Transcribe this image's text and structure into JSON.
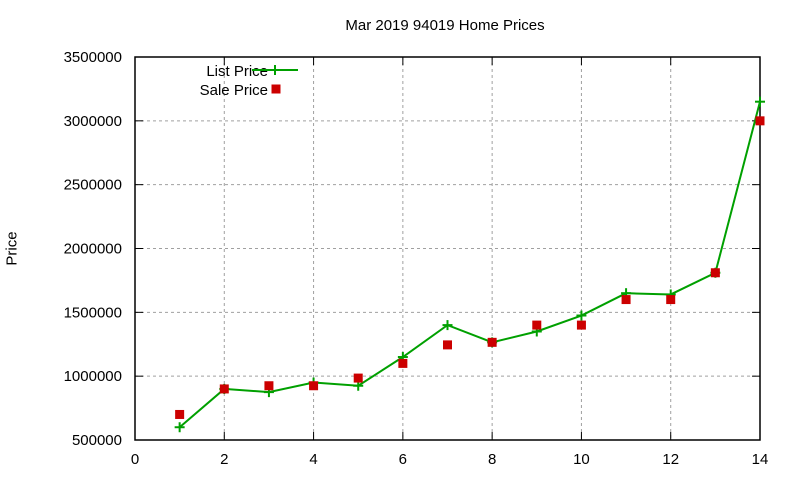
{
  "chart_data": {
    "type": "line",
    "title": "Mar 2019 94019 Home Prices",
    "xlabel": "",
    "ylabel": "Price",
    "xlim": [
      0,
      14
    ],
    "ylim": [
      500000,
      3500000
    ],
    "x_ticks": [
      0,
      2,
      4,
      6,
      8,
      10,
      12,
      14
    ],
    "y_ticks": [
      500000,
      1000000,
      1500000,
      2000000,
      2500000,
      3000000,
      3500000
    ],
    "grid": true,
    "legend_position": "top-left",
    "x": [
      1,
      2,
      3,
      4,
      5,
      6,
      7,
      8,
      9,
      10,
      11,
      12,
      13,
      14
    ],
    "series": [
      {
        "name": "List Price",
        "style": "lines+points",
        "marker": "plus",
        "color": "#00a000",
        "values": [
          600000,
          900000,
          875000,
          950000,
          925000,
          1150000,
          1400000,
          1265000,
          1350000,
          1475000,
          1650000,
          1640000,
          1810000,
          3150000
        ]
      },
      {
        "name": "Sale Price",
        "style": "points",
        "marker": "square",
        "color": "#cc0000",
        "values": [
          700000,
          900000,
          925000,
          925000,
          985000,
          1100000,
          1245000,
          1265000,
          1400000,
          1400000,
          1600000,
          1600000,
          1810000,
          3000000
        ]
      }
    ]
  }
}
